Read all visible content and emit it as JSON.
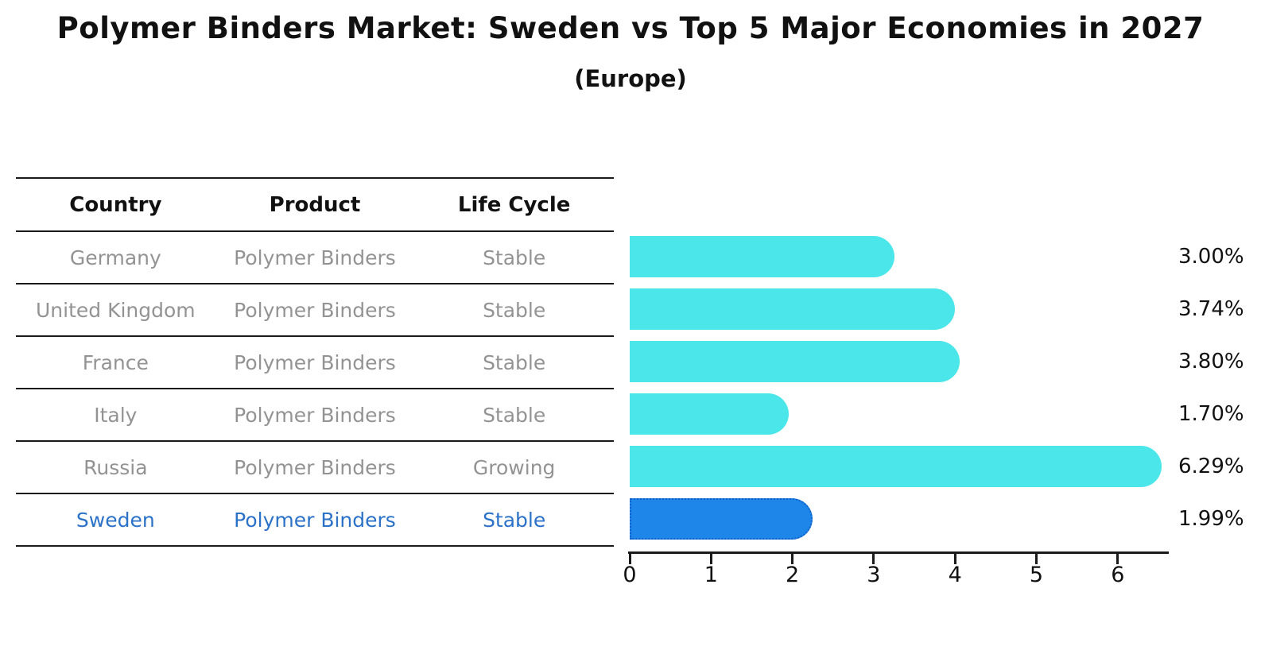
{
  "title": "Polymer Binders Market: Sweden vs Top 5 Major Economies in 2027",
  "subtitle": "(Europe)",
  "table": {
    "headers": [
      "Country",
      "Product",
      "Life Cycle"
    ],
    "rows": [
      {
        "country": "Germany",
        "product": "Polymer Binders",
        "life_cycle": "Stable",
        "highlight": false
      },
      {
        "country": "United Kingdom",
        "product": "Polymer Binders",
        "life_cycle": "Stable",
        "highlight": false
      },
      {
        "country": "France",
        "product": "Polymer Binders",
        "life_cycle": "Stable",
        "highlight": false
      },
      {
        "country": "Italy",
        "product": "Polymer Binders",
        "life_cycle": "Stable",
        "highlight": false
      },
      {
        "country": "Russia",
        "product": "Polymer Binders",
        "life_cycle": "Growing",
        "highlight": false
      },
      {
        "country": "Sweden",
        "product": "Polymer Binders",
        "life_cycle": "Stable",
        "highlight": true
      }
    ]
  },
  "chart_data": {
    "type": "bar",
    "orientation": "horizontal",
    "title": "Polymer Binders Market: Sweden vs Top 5 Major Economies in 2027",
    "subtitle": "(Europe)",
    "categories": [
      "Germany",
      "United Kingdom",
      "France",
      "Italy",
      "Russia",
      "Sweden"
    ],
    "values": [
      3.0,
      3.74,
      3.8,
      1.7,
      6.29,
      1.99
    ],
    "value_labels": [
      "3.00%",
      "3.74%",
      "3.80%",
      "1.70%",
      "6.29%",
      "1.99%"
    ],
    "highlight_index": 5,
    "xlim": [
      0,
      6.6
    ],
    "xticks": [
      0,
      1,
      2,
      3,
      4,
      5,
      6
    ],
    "grid": false,
    "legend": false,
    "bar_color": "#4AE6E9",
    "highlight_bar_color": "#1E86E8",
    "highlight_border_color": "#1261c9",
    "highlight_text_color": "#2b72c8",
    "row_text_color": "#939393",
    "axis_color": "#1a1a1a"
  }
}
